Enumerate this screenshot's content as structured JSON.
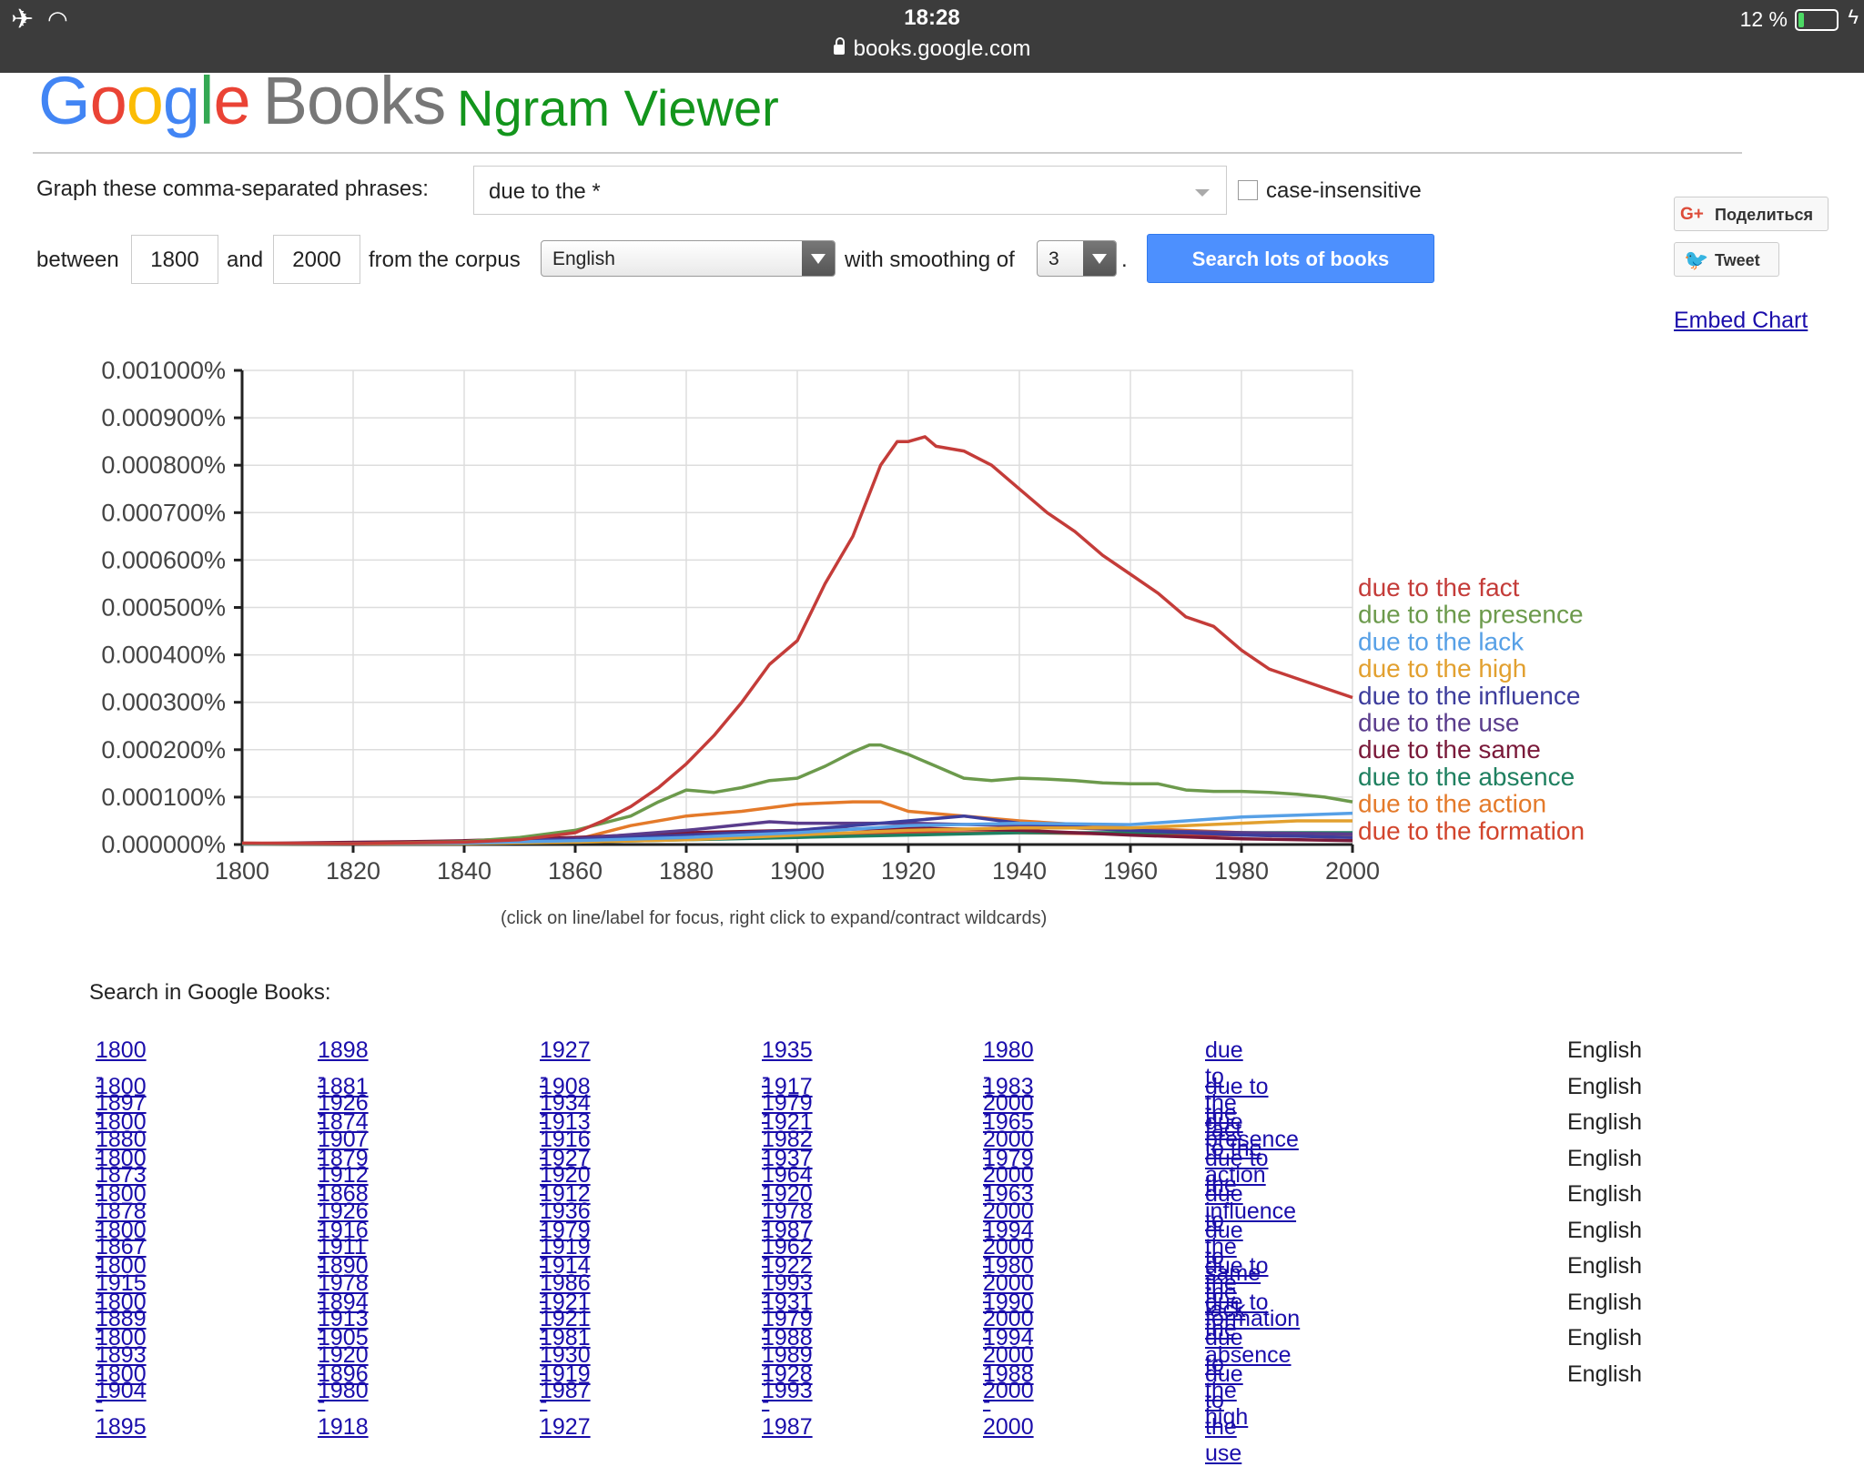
{
  "status_bar": {
    "time": "18:28",
    "url": "books.google.com",
    "battery": "12 %"
  },
  "logo": {
    "google": "Google",
    "books": "Books"
  },
  "title": "Ngram Viewer",
  "form": {
    "phrases_label": "Graph these comma-separated phrases:",
    "phrases_value": "due to the *",
    "case_label": "case-insensitive",
    "between_label": "between",
    "year_start": "1800",
    "and_label": "and",
    "year_end": "2000",
    "corpus_label": "from the corpus",
    "corpus_value": "English",
    "smoothing_label": "with smoothing of",
    "smoothing_value": "3",
    "period": ".",
    "search_button": "Search lots of books"
  },
  "share": {
    "gplus": "Поделиться",
    "tweet": "Tweet",
    "embed": "Embed Chart"
  },
  "chart_data": {
    "type": "line",
    "xlim": [
      1800,
      2000
    ],
    "ylim": [
      0,
      0.001
    ],
    "x_ticks": [
      "1800",
      "1820",
      "1840",
      "1860",
      "1880",
      "1900",
      "1920",
      "1940",
      "1960",
      "1980",
      "2000"
    ],
    "y_ticks": [
      "0.000000%",
      "0.000100%",
      "0.000200%",
      "0.000300%",
      "0.000400%",
      "0.000500%",
      "0.000600%",
      "0.000700%",
      "0.000800%",
      "0.000900%",
      "0.001000%"
    ],
    "grid": true,
    "legend": "right",
    "series": [
      {
        "name": "due to the fact",
        "color": "#c43c39",
        "x": [
          1800,
          1820,
          1840,
          1850,
          1860,
          1865,
          1870,
          1875,
          1880,
          1885,
          1890,
          1895,
          1900,
          1905,
          1910,
          1915,
          1918,
          1920,
          1923,
          1925,
          1930,
          1935,
          1940,
          1945,
          1950,
          1955,
          1960,
          1965,
          1970,
          1975,
          1980,
          1985,
          1990,
          1995,
          2000
        ],
        "y": [
          3e-06,
          2e-06,
          5e-06,
          1e-05,
          2.5e-05,
          5e-05,
          8e-05,
          0.00012,
          0.00017,
          0.00023,
          0.0003,
          0.00038,
          0.00043,
          0.00055,
          0.00065,
          0.0008,
          0.00085,
          0.00085,
          0.00086,
          0.00084,
          0.00083,
          0.0008,
          0.00075,
          0.0007,
          0.00066,
          0.00061,
          0.00057,
          0.00053,
          0.00048,
          0.00046,
          0.00041,
          0.00037,
          0.00035,
          0.00033,
          0.00031
        ]
      },
      {
        "name": "due to the presence",
        "color": "#6c9a4c",
        "x": [
          1800,
          1820,
          1840,
          1850,
          1860,
          1870,
          1875,
          1880,
          1885,
          1890,
          1895,
          1900,
          1905,
          1910,
          1913,
          1915,
          1920,
          1925,
          1930,
          1935,
          1940,
          1945,
          1950,
          1955,
          1960,
          1965,
          1970,
          1975,
          1980,
          1985,
          1990,
          1995,
          2000
        ],
        "y": [
          2e-06,
          2e-06,
          6e-06,
          1.5e-05,
          3e-05,
          6e-05,
          9e-05,
          0.000115,
          0.00011,
          0.00012,
          0.000135,
          0.00014,
          0.000165,
          0.000195,
          0.00021,
          0.00021,
          0.00019,
          0.000165,
          0.00014,
          0.000135,
          0.00014,
          0.000138,
          0.000135,
          0.00013,
          0.000128,
          0.000128,
          0.000115,
          0.000112,
          0.000112,
          0.00011,
          0.000106,
          0.0001,
          9e-05
        ]
      },
      {
        "name": "due to the lack",
        "color": "#57a0e6",
        "x": [
          1800,
          1840,
          1860,
          1880,
          1900,
          1920,
          1940,
          1960,
          1970,
          1980,
          1990,
          2000
        ],
        "y": [
          1e-06,
          3e-06,
          8e-06,
          1.5e-05,
          2.5e-05,
          4e-05,
          4.5e-05,
          4.2e-05,
          5e-05,
          5.8e-05,
          6.2e-05,
          6.6e-05
        ]
      },
      {
        "name": "due to the high",
        "color": "#e2a02f",
        "x": [
          1800,
          1840,
          1860,
          1880,
          1900,
          1920,
          1940,
          1960,
          1980,
          1990,
          2000
        ],
        "y": [
          1e-06,
          2e-06,
          5e-06,
          1e-05,
          2e-05,
          3e-05,
          3.5e-05,
          3.5e-05,
          4.5e-05,
          5e-05,
          5e-05
        ]
      },
      {
        "name": "due to the influence",
        "color": "#3d3d9c",
        "x": [
          1800,
          1840,
          1860,
          1880,
          1900,
          1920,
          1930,
          1940,
          1960,
          1980,
          2000
        ],
        "y": [
          1e-06,
          4e-06,
          1e-05,
          2e-05,
          3e-05,
          5e-05,
          6e-05,
          4.5e-05,
          3e-05,
          2e-05,
          1.5e-05
        ]
      },
      {
        "name": "due to the use",
        "color": "#5a3c8c",
        "x": [
          1800,
          1840,
          1860,
          1880,
          1895,
          1900,
          1920,
          1940,
          1960,
          1980,
          2000
        ],
        "y": [
          1e-06,
          4e-06,
          1.2e-05,
          3e-05,
          4.8e-05,
          4.5e-05,
          4.5e-05,
          4e-05,
          3e-05,
          2.5e-05,
          2.2e-05
        ]
      },
      {
        "name": "due to the same",
        "color": "#7a1a3a",
        "x": [
          1800,
          1830,
          1840,
          1860,
          1880,
          1900,
          1920,
          1940,
          1960,
          1980,
          2000
        ],
        "y": [
          2e-06,
          6e-06,
          8e-06,
          1.5e-05,
          2.5e-05,
          3e-05,
          3.5e-05,
          3e-05,
          2e-05,
          1.2e-05,
          8e-06
        ]
      },
      {
        "name": "due to the absence",
        "color": "#1f8060",
        "x": [
          1800,
          1840,
          1860,
          1880,
          1900,
          1920,
          1940,
          1960,
          1980,
          2000
        ],
        "y": [
          1e-06,
          2e-06,
          5e-06,
          1e-05,
          1.5e-05,
          2e-05,
          2.5e-05,
          2.5e-05,
          2.5e-05,
          2.5e-05
        ]
      },
      {
        "name": "due to the action",
        "color": "#e47a2a",
        "x": [
          1800,
          1840,
          1860,
          1870,
          1880,
          1890,
          1900,
          1910,
          1915,
          1920,
          1930,
          1940,
          1960,
          1980,
          2000
        ],
        "y": [
          1e-06,
          4e-06,
          1e-05,
          4e-05,
          6e-05,
          7e-05,
          8.5e-05,
          9e-05,
          9e-05,
          7e-05,
          6e-05,
          5e-05,
          3.5e-05,
          2.5e-05,
          2e-05
        ]
      },
      {
        "name": "due to the formation",
        "color": "#d2452d",
        "x": [
          1800,
          1840,
          1860,
          1880,
          1900,
          1920,
          1940,
          1960,
          1980,
          2000
        ],
        "y": [
          1e-06,
          3e-06,
          6e-06,
          1.2e-05,
          2e-05,
          2.5e-05,
          2.5e-05,
          2.2e-05,
          2e-05,
          1.8e-05
        ]
      }
    ]
  },
  "hint": "(click on line/label for focus, right click to expand/contract wildcards)",
  "search_in": "Search in Google Books:",
  "results": [
    {
      "ranges": [
        "1800 - 1897",
        "1898 - 1926",
        "1927 - 1934",
        "1935 - 1979",
        "1980 - 2000"
      ],
      "phrase": "due to the fact",
      "corpus": "English"
    },
    {
      "ranges": [
        "1800 - 1880",
        "1881 - 1907",
        "1908 - 1916",
        "1917 - 1982",
        "1983 - 2000"
      ],
      "phrase": "due to the presence",
      "corpus": "English"
    },
    {
      "ranges": [
        "1800 - 1873",
        "1874 - 1912",
        "1913 - 1920",
        "1921 - 1964",
        "1965 - 2000"
      ],
      "phrase": "due to the action",
      "corpus": "English"
    },
    {
      "ranges": [
        "1800 - 1878",
        "1879 - 1926",
        "1927 - 1936",
        "1937 - 1978",
        "1979 - 2000"
      ],
      "phrase": "due to the influence",
      "corpus": "English"
    },
    {
      "ranges": [
        "1800 - 1867",
        "1868 - 1911",
        "1912 - 1919",
        "1920 - 1962",
        "1963 - 2000"
      ],
      "phrase": "due to the same",
      "corpus": "English"
    },
    {
      "ranges": [
        "1800 - 1915",
        "1916 - 1978",
        "1979 - 1986",
        "1987 - 1993",
        "1994 - 2000"
      ],
      "phrase": "due to the lack",
      "corpus": "English"
    },
    {
      "ranges": [
        "1800 - 1889",
        "1890 - 1913",
        "1914 - 1921",
        "1922 - 1979",
        "1980 - 2000"
      ],
      "phrase": "due to the formation",
      "corpus": "English"
    },
    {
      "ranges": [
        "1800 - 1893",
        "1894 - 1920",
        "1921 - 1930",
        "1931 - 1989",
        "1990 - 2000"
      ],
      "phrase": "due to the absence",
      "corpus": "English"
    },
    {
      "ranges": [
        "1800 - 1904",
        "1905 - 1980",
        "1981 - 1987",
        "1988 - 1993",
        "1994 - 2000"
      ],
      "phrase": "due to the high",
      "corpus": "English"
    },
    {
      "ranges": [
        "1800 - 1895",
        "1896 - 1918",
        "1919 - 1927",
        "1928 - 1987",
        "1988 - 2000"
      ],
      "phrase": "due to the use",
      "corpus": "English"
    }
  ]
}
